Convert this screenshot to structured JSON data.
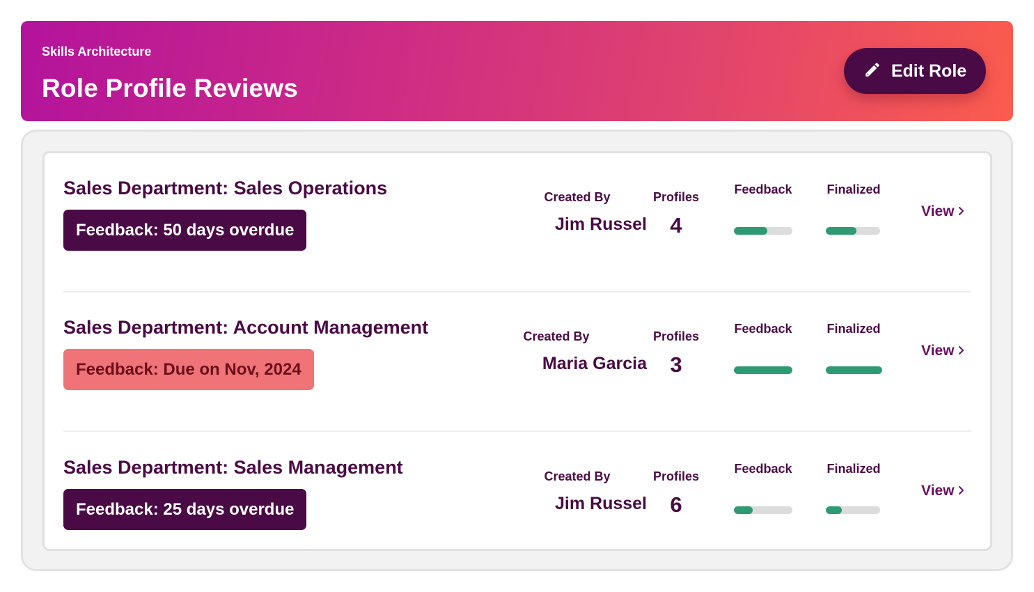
{
  "header": {
    "eyebrow": "Skills Architecture",
    "title": "Role Profile Reviews",
    "edit_button_label": "Edit Role",
    "edit_icon": "pencil-icon"
  },
  "columns": {
    "created_by": "Created By",
    "profiles": "Profiles",
    "feedback": "Feedback",
    "finalized": "Finalized",
    "view": "View"
  },
  "colors": {
    "primary_dark": "#4a0a45",
    "overdue_badge": "#4a0a45",
    "due_badge": "#f07377",
    "progress_fill": "#2e9a74",
    "progress_track": "#dcdcdc",
    "header_gradient_start": "#b3139c",
    "header_gradient_end": "#fb5c4d"
  },
  "rows": [
    {
      "title": "Sales Department: Sales Operations",
      "badge": "Feedback: 50 days overdue",
      "badge_style": "dark",
      "created_by": "Jim Russel",
      "profiles": "4",
      "feedback_progress": 0.57,
      "finalized_progress": 0.57
    },
    {
      "title": "Sales Department: Account Management",
      "badge": "Feedback: Due on Nov, 2024",
      "badge_style": "light",
      "created_by": "Maria Garcia",
      "profiles": "3",
      "feedback_progress": 1.0,
      "finalized_progress": 1.0
    },
    {
      "title": "Sales Department: Sales Management",
      "badge": "Feedback: 25 days overdue",
      "badge_style": "dark",
      "created_by": "Jim Russel",
      "profiles": "6",
      "feedback_progress": 0.32,
      "finalized_progress": 0.3
    }
  ]
}
